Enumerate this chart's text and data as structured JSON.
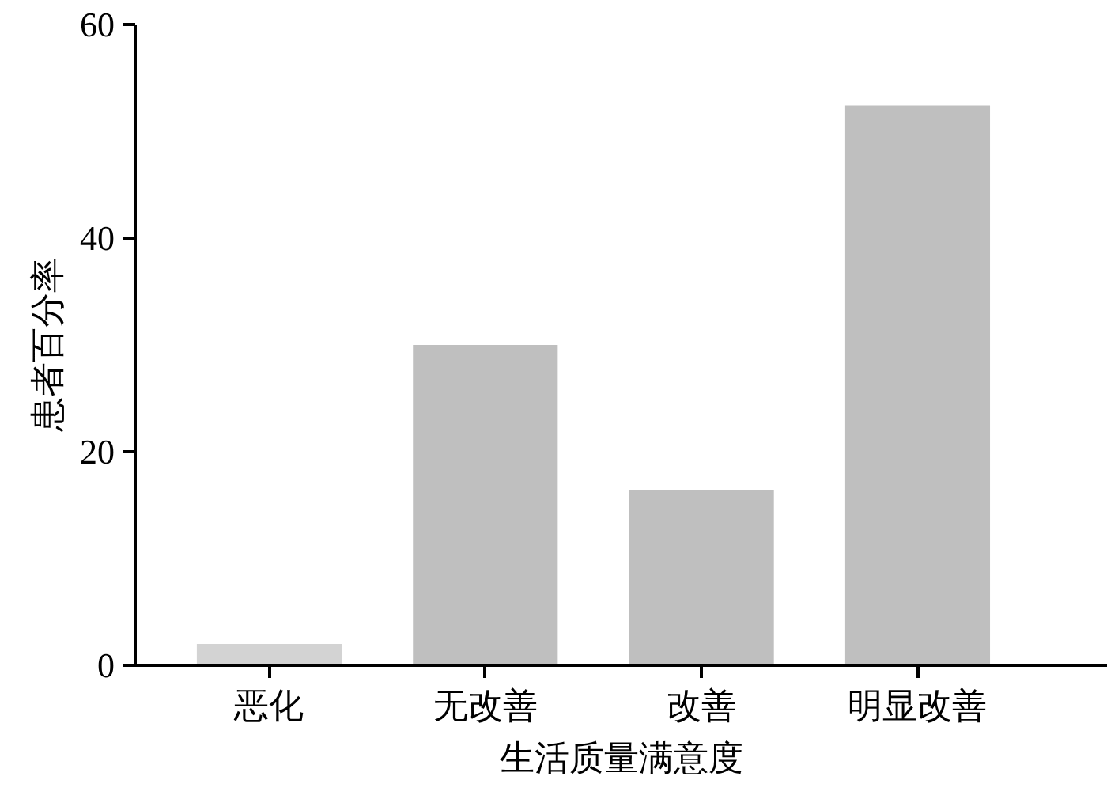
{
  "chart_data": {
    "type": "bar",
    "xlabel": "生活质量满意度",
    "ylabel": "患者百分率",
    "categories": [
      "恶化",
      "无改善",
      "改善",
      "明显改善"
    ],
    "values": [
      2.0,
      30.0,
      16.4,
      52.4
    ],
    "colors": [
      "#d3d3d3",
      "#bfbfbf",
      "#bfbfbf",
      "#bfbfbf"
    ],
    "ylim": [
      0,
      60
    ],
    "yticks": [
      0,
      20,
      40,
      60
    ],
    "grid": false
  }
}
